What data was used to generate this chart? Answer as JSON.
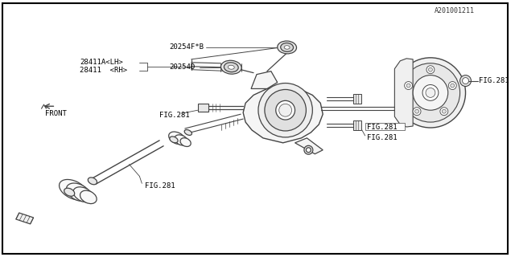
{
  "bg_color": "#ffffff",
  "line_color": "#444444",
  "text_color": "#000000",
  "border_color": "#000000",
  "fig_width": 6.4,
  "fig_height": 3.2,
  "dpi": 100,
  "labels": {
    "fig281_axle": "FIG.281",
    "fig281_bolt_left": "FIG.281",
    "fig281_upper_right": "FIG.281",
    "fig281_bolt_right2": "FIG.281",
    "fig281_hub_bolt": "FIG.281",
    "part_28411": "28411  <RH>",
    "part_28411a": "28411A<LH>",
    "part_20254d": "20254D",
    "part_20254fb": "20254F*B",
    "front_label": "FRONT",
    "diagram_id": "A201001211"
  }
}
